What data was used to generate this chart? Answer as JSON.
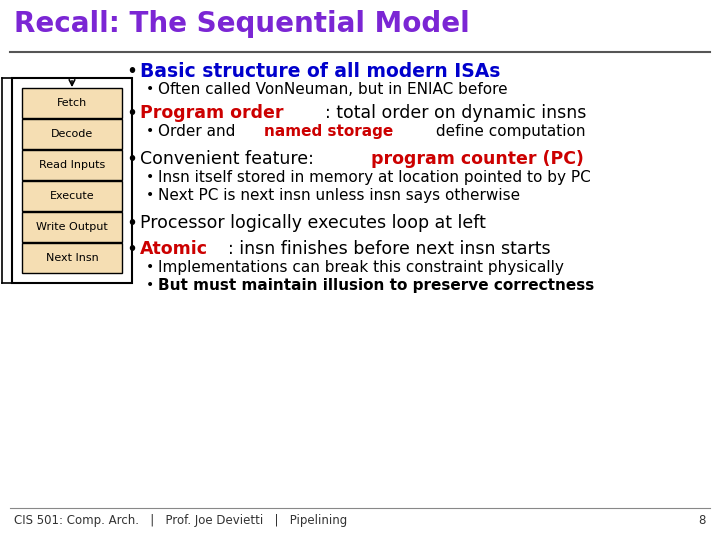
{
  "title": "Recall: The Sequential Model",
  "title_color": "#7B26D4",
  "slide_bg": "#FFFFFF",
  "footer": "CIS 501: Comp. Arch.   |   Prof. Joe Devietti   |   Pipelining",
  "footer_page": "8",
  "box_labels": [
    "Fetch",
    "Decode",
    "Read Inputs",
    "Execute",
    "Write Output",
    "Next Insn"
  ],
  "box_fill": "#F5DEB3",
  "box_edge": "#000000",
  "blue": "#0000CC",
  "red": "#CC0000",
  "black": "#000000"
}
